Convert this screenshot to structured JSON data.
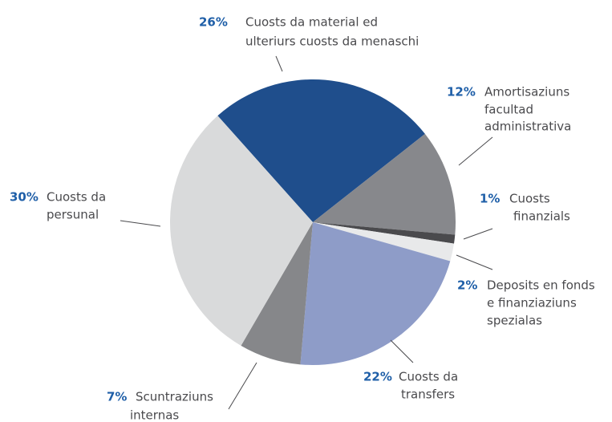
{
  "chart_data": {
    "type": "pie",
    "categories": [
      [
        "Cuosts da material ed",
        "ulteriurs cuosts da menaschi"
      ],
      [
        "Amortisaziuns",
        "facultad",
        "administrativa"
      ],
      [
        "Cuosts",
        "finanzials"
      ],
      [
        "Deposits en fonds",
        "e finanziaziuns",
        "spezialas"
      ],
      [
        "Cuosts da",
        "transfers"
      ],
      [
        "Scuntraziuns",
        "internas"
      ],
      [
        "Cuosts da",
        "persunal"
      ]
    ],
    "values": [
      26,
      12,
      1,
      2,
      22,
      7,
      30
    ],
    "value_labels": [
      "26%",
      "12%",
      "1%",
      "2%",
      "22%",
      "7%",
      "30%"
    ],
    "colors": [
      "#1f4e8c",
      "#87888c",
      "#4a4a4d",
      "#e8e9ea",
      "#8e9cc8",
      "#86878a",
      "#d9dadb"
    ]
  }
}
